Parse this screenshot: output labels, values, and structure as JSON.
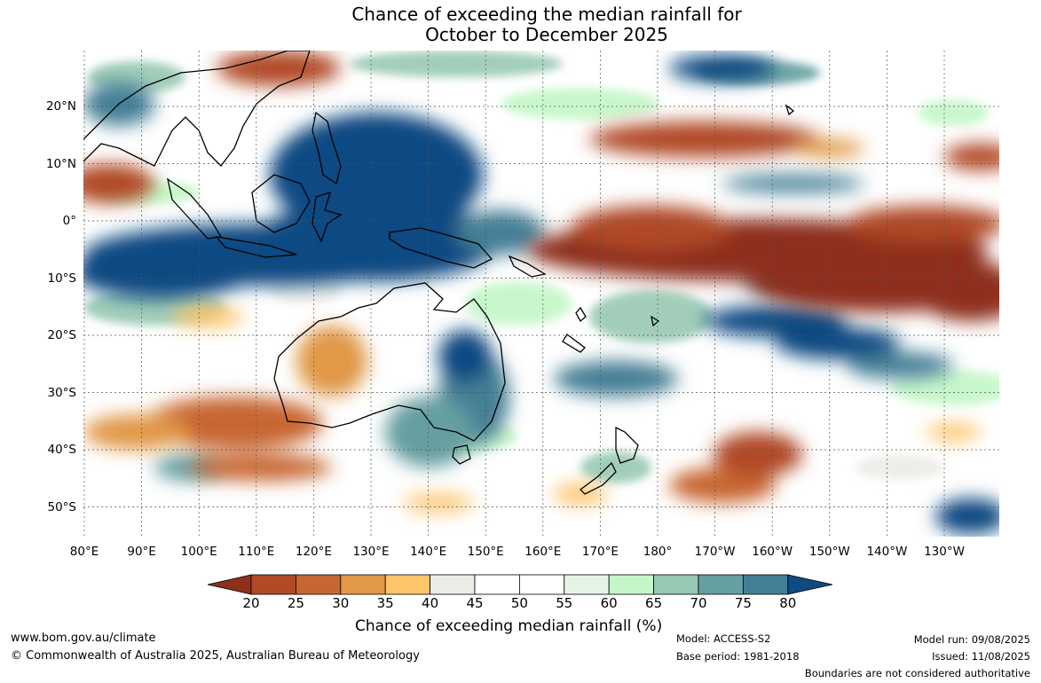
{
  "title": {
    "line1": "Chance of exceeding the median rainfall for",
    "line2": "October to December 2025"
  },
  "map": {
    "lat_labels": [
      "20°N",
      "10°N",
      "0°",
      "10°S",
      "20°S",
      "30°S",
      "40°S",
      "50°S"
    ],
    "lon_labels": [
      "80°E",
      "90°E",
      "100°E",
      "110°E",
      "120°E",
      "130°E",
      "140°E",
      "150°E",
      "160°E",
      "170°E",
      "180°",
      "170°W",
      "160°W",
      "150°W",
      "140°W",
      "130°W"
    ],
    "land_color": "#000000",
    "grid_color": "#555555"
  },
  "colorbar": {
    "ticks": [
      "20",
      "25",
      "30",
      "35",
      "40",
      "45",
      "50",
      "55",
      "60",
      "65",
      "70",
      "75",
      "80"
    ],
    "colors": [
      "#8e2f1c",
      "#b14a26",
      "#c86632",
      "#e19847",
      "#fdc46a",
      "#ecebe6",
      "#ffffff",
      "#ffffff",
      "#e4f5e6",
      "#c4f7c8",
      "#98c9b2",
      "#669fa1",
      "#447f95",
      "#0f4a82"
    ],
    "label": "Chance of exceeding median rainfall (%)"
  },
  "footer": {
    "website": "www.bom.gov.au/climate",
    "copyright": "© Commonwealth of Australia 2025, Australian Bureau of Meteorology",
    "model": "Model: ACCESS-S2",
    "base_period": "Base period: 1981-2018",
    "model_run": "Model run: 09/08/2025",
    "issued": "Issued: 11/08/2025",
    "disclaimer": "Boundaries are not considered authoritative"
  }
}
